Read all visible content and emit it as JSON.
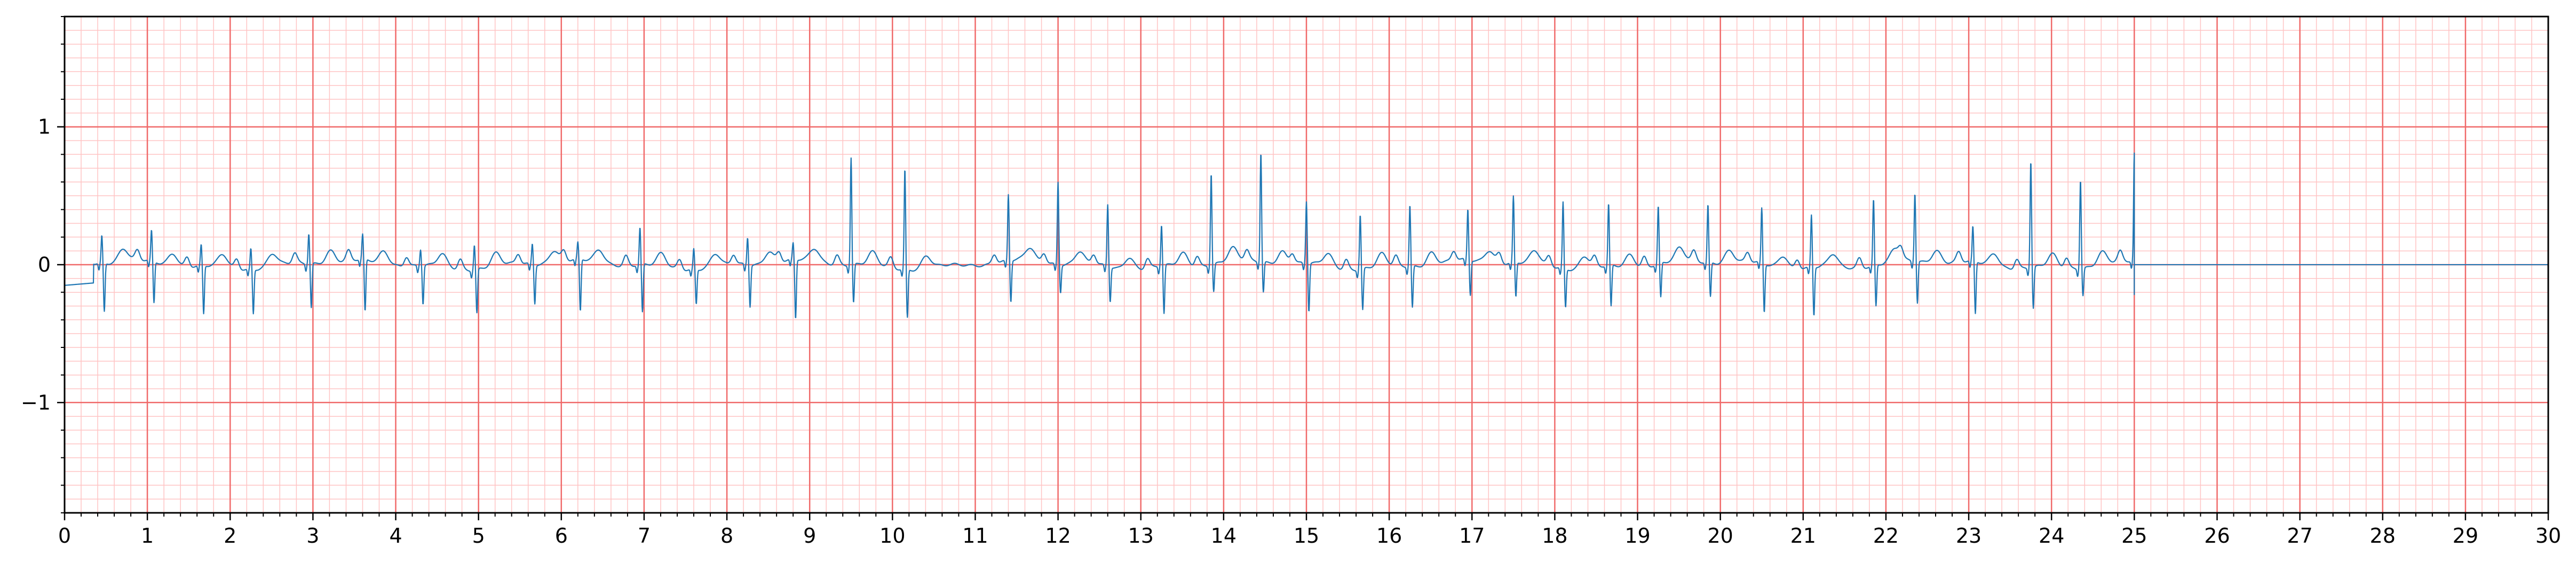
{
  "chart_data": {
    "type": "line",
    "title": "",
    "xlabel": "",
    "ylabel": "",
    "xlim": [
      0,
      30
    ],
    "ylim": [
      -1.8,
      1.8
    ],
    "x_ticks": [
      "0",
      "1",
      "2",
      "3",
      "4",
      "5",
      "6",
      "7",
      "8",
      "9",
      "10",
      "11",
      "12",
      "13",
      "14",
      "15",
      "16",
      "17",
      "18",
      "19",
      "20",
      "21",
      "22",
      "23",
      "24",
      "25",
      "26",
      "27",
      "28",
      "29",
      "30"
    ],
    "y_ticks": [
      {
        "value": 1,
        "label": "1"
      },
      {
        "value": 0,
        "label": "0"
      },
      {
        "value": -1,
        "label": "−1"
      }
    ],
    "grid": {
      "major": true,
      "minor": true,
      "major_x_step": 1,
      "minor_x_step": 0.2,
      "major_y_step": 1,
      "minor_y_step": 0.1,
      "major_color": "#f06a6a",
      "minor_color": "#ffc4c4"
    },
    "series": [
      {
        "color": "#1f77b4",
        "signal_end": 25.0,
        "flat_value_after_end": 0.0,
        "beats": [
          {
            "t": 0.45,
            "r": 0.2,
            "s": -0.35
          },
          {
            "t": 1.05,
            "r": 0.22,
            "s": -0.3
          },
          {
            "t": 1.65,
            "r": 0.15,
            "s": -0.35
          },
          {
            "t": 2.25,
            "r": 0.15,
            "s": -0.32
          },
          {
            "t": 2.95,
            "r": 0.22,
            "s": -0.32
          },
          {
            "t": 3.6,
            "r": 0.18,
            "s": -0.38
          },
          {
            "t": 4.3,
            "r": 0.12,
            "s": -0.28
          },
          {
            "t": 4.95,
            "r": 0.18,
            "s": -0.32
          },
          {
            "t": 5.65,
            "r": 0.15,
            "s": -0.28
          },
          {
            "t": 6.2,
            "r": 0.12,
            "s": -0.38
          },
          {
            "t": 6.95,
            "r": 0.27,
            "s": -0.35
          },
          {
            "t": 7.6,
            "r": 0.15,
            "s": -0.25
          },
          {
            "t": 8.25,
            "r": 0.2,
            "s": -0.3
          },
          {
            "t": 8.8,
            "r": 0.12,
            "s": -0.43
          },
          {
            "t": 9.5,
            "r": 0.78,
            "s": -0.28
          },
          {
            "t": 10.15,
            "r": 0.73,
            "s": -0.35
          },
          {
            "t": 11.4,
            "r": 0.48,
            "s": -0.3
          },
          {
            "t": 12.0,
            "r": 0.6,
            "s": -0.2
          },
          {
            "t": 12.6,
            "r": 0.45,
            "s": -0.25
          },
          {
            "t": 13.25,
            "r": 0.3,
            "s": -0.35
          },
          {
            "t": 13.85,
            "r": 0.67,
            "s": -0.2
          },
          {
            "t": 14.45,
            "r": 0.8,
            "s": -0.22
          },
          {
            "t": 15.0,
            "r": 0.45,
            "s": -0.35
          },
          {
            "t": 15.65,
            "r": 0.4,
            "s": -0.3
          },
          {
            "t": 16.25,
            "r": 0.45,
            "s": -0.3
          },
          {
            "t": 16.95,
            "r": 0.37,
            "s": -0.25
          },
          {
            "t": 17.5,
            "r": 0.48,
            "s": -0.25
          },
          {
            "t": 18.1,
            "r": 0.48,
            "s": -0.28
          },
          {
            "t": 18.65,
            "r": 0.45,
            "s": -0.3
          },
          {
            "t": 19.25,
            "r": 0.42,
            "s": -0.25
          },
          {
            "t": 19.85,
            "r": 0.42,
            "s": -0.25
          },
          {
            "t": 20.5,
            "r": 0.4,
            "s": -0.35
          },
          {
            "t": 21.1,
            "r": 0.38,
            "s": -0.35
          },
          {
            "t": 21.85,
            "r": 0.48,
            "s": -0.3
          },
          {
            "t": 22.35,
            "r": 0.5,
            "s": -0.3
          },
          {
            "t": 23.05,
            "r": 0.25,
            "s": -0.38
          },
          {
            "t": 23.75,
            "r": 0.78,
            "s": -0.3
          },
          {
            "t": 24.35,
            "r": 0.65,
            "s": -0.2
          },
          {
            "t": 25.0,
            "r": 0.78,
            "s": -0.22
          }
        ]
      }
    ]
  }
}
